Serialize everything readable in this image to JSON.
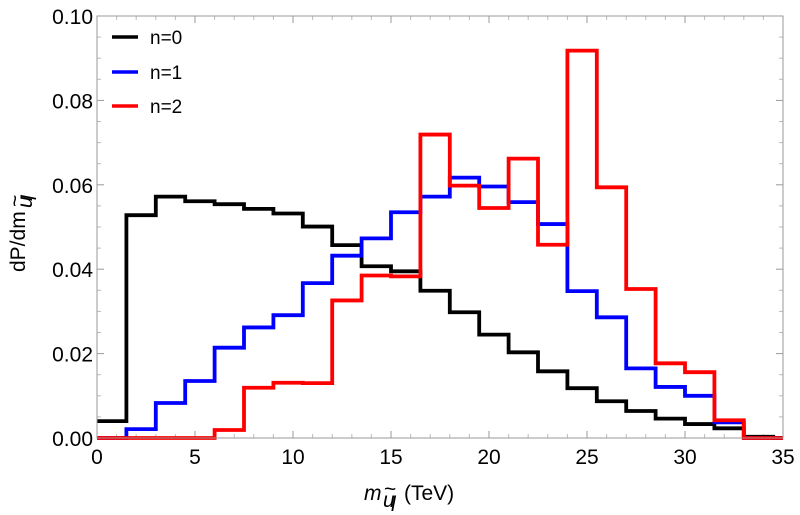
{
  "chart_data": {
    "type": "line",
    "style": "step-histogram",
    "x_edges": [
      0,
      1.5,
      3,
      4.5,
      6,
      7.5,
      9,
      10.5,
      12,
      13.5,
      15,
      16.5,
      18,
      19.5,
      21,
      22.5,
      24,
      25.5,
      27,
      28.5,
      30,
      31.5,
      33,
      34.5,
      35
    ],
    "series": [
      {
        "name": "n=0",
        "color": "#000000",
        "values": [
          0.004,
          0.0528,
          0.0572,
          0.0561,
          0.0554,
          0.0543,
          0.0532,
          0.0501,
          0.0457,
          0.0407,
          0.0395,
          0.0349,
          0.0298,
          0.0245,
          0.0203,
          0.0158,
          0.0118,
          0.0087,
          0.0064,
          0.0046,
          0.0033,
          0.0023,
          0.0003,
          0.0
        ]
      },
      {
        "name": "n=1",
        "color": "#0000ff",
        "values": [
          0.0,
          0.0021,
          0.0083,
          0.0135,
          0.0214,
          0.0262,
          0.0291,
          0.0367,
          0.0432,
          0.0473,
          0.0535,
          0.0572,
          0.0617,
          0.0596,
          0.0559,
          0.0507,
          0.0348,
          0.0286,
          0.0165,
          0.0121,
          0.01,
          0.0037,
          0.0,
          0.0
        ]
      },
      {
        "name": "n=2",
        "color": "#ff0000",
        "values": [
          0.0,
          0.0,
          0.0,
          0.0,
          0.0019,
          0.0119,
          0.0131,
          0.013,
          0.0326,
          0.0385,
          0.0383,
          0.0719,
          0.0598,
          0.0545,
          0.0662,
          0.0458,
          0.0918,
          0.0594,
          0.0353,
          0.0177,
          0.0156,
          0.0042,
          0.0,
          0.0
        ]
      }
    ],
    "xlim": [
      0,
      35
    ],
    "ylim": [
      0,
      0.1
    ],
    "xticks": [
      0,
      5,
      10,
      15,
      20,
      25,
      30,
      35
    ],
    "xtick_labels": [
      "0",
      "5",
      "10",
      "15",
      "20",
      "25",
      "30",
      "35"
    ],
    "yticks": [
      0.0,
      0.02,
      0.04,
      0.06,
      0.08,
      0.1
    ],
    "ytick_labels": [
      "0.00",
      "0.02",
      "0.04",
      "0.06",
      "0.08",
      "0.10"
    ],
    "xlabel": {
      "base": "m",
      "sub_base": "u",
      "sub_accent": "~",
      "sub_sub": "l",
      "unit": "(TeV)"
    },
    "ylabel": {
      "main": "dP/dm",
      "sub_base": "u",
      "sub_accent": "~",
      "sub_sub": "l"
    },
    "grid": false,
    "legend_position": "top-left"
  }
}
